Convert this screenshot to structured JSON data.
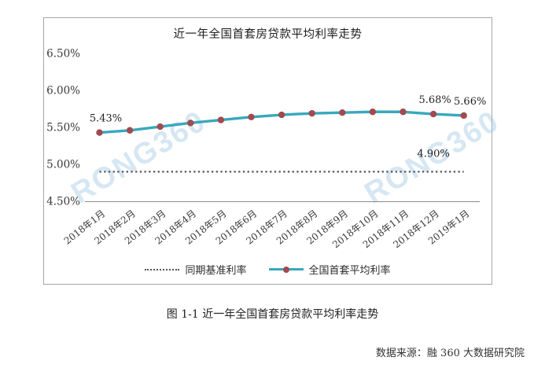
{
  "figure": {
    "caption": "图 1-1 近一年全国首套房贷款平均利率走势",
    "source": "数据来源：融 360 大数据研究院",
    "watermark": "RONG360"
  },
  "chart_data": {
    "type": "line",
    "title": "近一年全国首套房贷款平均利率走势",
    "categories": [
      "2018年1月",
      "2018年2月",
      "2018年3月",
      "2018年4月",
      "2018年5月",
      "2018年6月",
      "2018年7月",
      "2018年8月",
      "2018年9月",
      "2018年10月",
      "2018年11月",
      "2018年12月",
      "2019年1月"
    ],
    "series": [
      {
        "name": "同期基准利率",
        "style": "dotted",
        "color": "#56515b",
        "values": [
          4.9,
          4.9,
          4.9,
          4.9,
          4.9,
          4.9,
          4.9,
          4.9,
          4.9,
          4.9,
          4.9,
          4.9,
          4.9
        ]
      },
      {
        "name": "全国首套平均利率",
        "style": "solid",
        "color": "#38a8bd",
        "marker_color": "#a04b50",
        "values": [
          5.43,
          5.46,
          5.51,
          5.56,
          5.6,
          5.64,
          5.67,
          5.69,
          5.7,
          5.71,
          5.71,
          5.68,
          5.66
        ]
      }
    ],
    "yticks": [
      "6.50%",
      "6.00%",
      "5.50%",
      "5.00%",
      "4.50%"
    ],
    "ylim": [
      4.5,
      6.5
    ],
    "grid": false,
    "legend_position": "bottom",
    "point_labels": [
      {
        "i": 0,
        "text": "5.43%"
      },
      {
        "i": 11,
        "text": "5.68%"
      },
      {
        "i": 12,
        "text": "5.66%"
      }
    ],
    "benchmark_label": "4.90%"
  }
}
